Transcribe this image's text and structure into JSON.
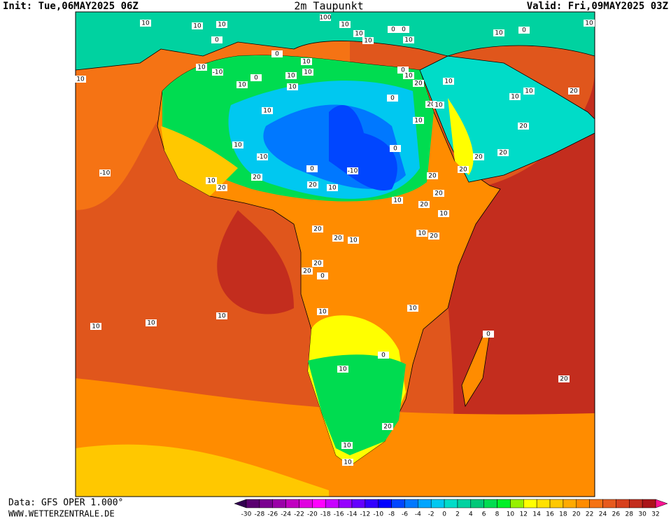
{
  "header": {
    "init": "Init: Tue,06MAY2025 06Z",
    "title": "2m Taupunkt",
    "valid": "Valid: Fri,09MAY2025 03Z"
  },
  "footer": {
    "source": "Data: GFS OPER 1.000°",
    "site": "WWW.WETTERZENTRALE.DE"
  },
  "legend": {
    "ticks": [
      -30,
      -28,
      -26,
      -24,
      -22,
      -20,
      -18,
      -16,
      -14,
      -12,
      -10,
      -8,
      -6,
      -4,
      -2,
      0,
      2,
      4,
      6,
      8,
      10,
      12,
      14,
      16,
      18,
      20,
      22,
      24,
      26,
      28,
      30,
      32
    ],
    "colors": [
      "#5a0070",
      "#7a0090",
      "#9a00a8",
      "#c000c0",
      "#e000e0",
      "#ff00ff",
      "#c800ff",
      "#9600ff",
      "#6400ff",
      "#3200ff",
      "#0000ff",
      "#0046ff",
      "#0078ff",
      "#00a5ff",
      "#00c8f0",
      "#00dcc8",
      "#00d2a0",
      "#00c878",
      "#00dc50",
      "#00f028",
      "#96f000",
      "#ffff00",
      "#ffe100",
      "#ffc800",
      "#ffaa00",
      "#ff8c00",
      "#f57314",
      "#e65a1e",
      "#d7411e",
      "#c32d1e",
      "#aa1419"
    ],
    "under": "#320050",
    "over": "#ff1493"
  },
  "map_labels": [
    10,
    10,
    100,
    10,
    10,
    10,
    0,
    0,
    10,
    10,
    10,
    0,
    10,
    0,
    0,
    10,
    10,
    -10,
    0,
    10,
    10,
    10,
    10,
    10,
    0,
    10,
    0,
    10,
    -10,
    0,
    -10,
    20,
    10,
    -10,
    10,
    20,
    20,
    10,
    0,
    10,
    20,
    10,
    20,
    10,
    10,
    10,
    20,
    20,
    20,
    20,
    20,
    20,
    20,
    20,
    10,
    10,
    20,
    20,
    10,
    10,
    20,
    20,
    20,
    0,
    10,
    10,
    0,
    0,
    10,
    20,
    10,
    10,
    20,
    10,
    10,
    10
  ]
}
